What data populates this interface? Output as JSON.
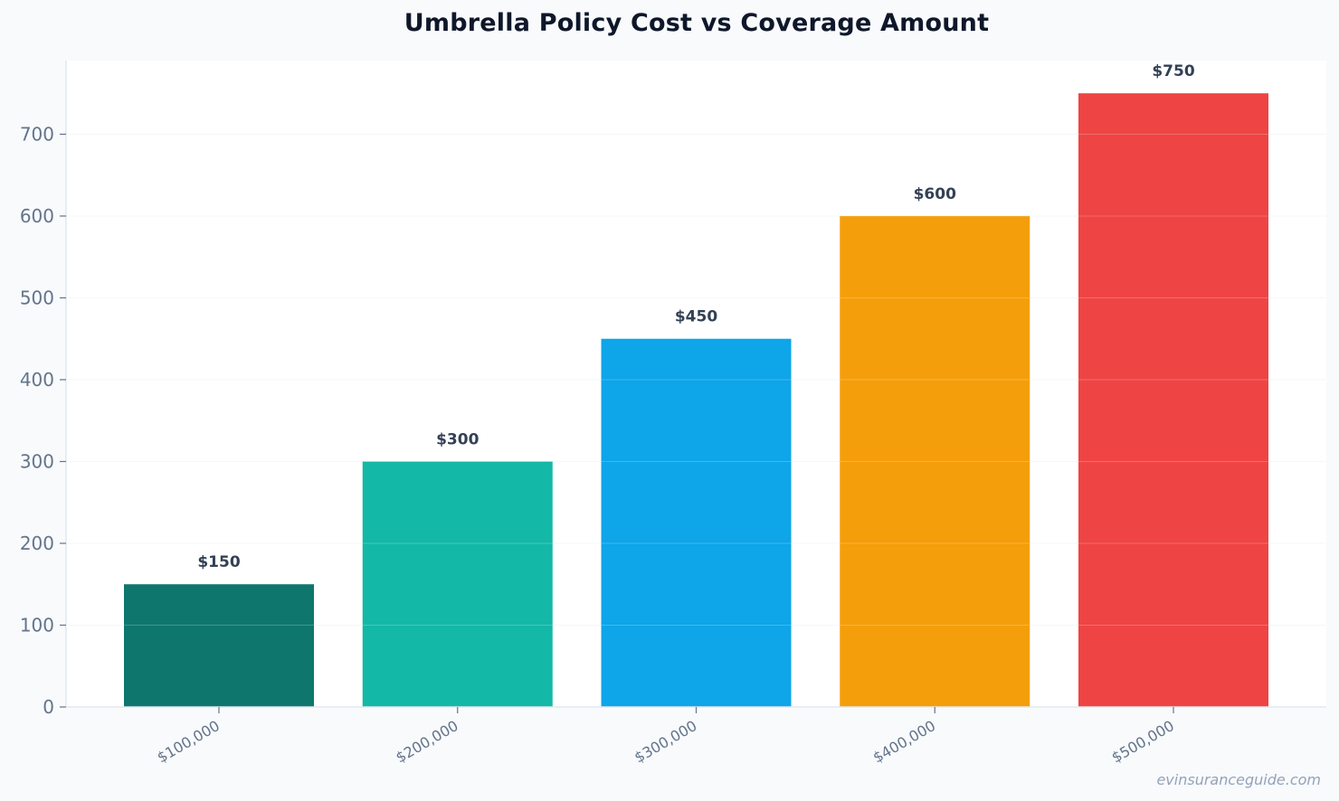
{
  "page": {
    "title": "Umbrella Policy Cost vs Coverage Amount",
    "watermark": "evinsuranceguide.com"
  },
  "colors": {
    "background": "#f8fafc",
    "plot_background": "#ffffff",
    "axis": "#e2e8f0",
    "tick_label": "#64748b",
    "value_label": "#334155"
  },
  "chart_data": {
    "type": "bar",
    "title": "Umbrella Policy Cost vs Coverage Amount",
    "xlabel": "",
    "ylabel": "",
    "categories": [
      "$100,000",
      "$200,000",
      "$300,000",
      "$400,000",
      "$500,000"
    ],
    "values": [
      150,
      300,
      450,
      600,
      750
    ],
    "value_labels": [
      "$150",
      "$300",
      "$450",
      "$600",
      "$750"
    ],
    "bar_colors": [
      "#0f766e",
      "#14b8a6",
      "#0ea5e9",
      "#f59e0b",
      "#ef4444"
    ],
    "ylim": [
      0,
      790
    ],
    "yticks": [
      0,
      100,
      200,
      300,
      400,
      500,
      600,
      700
    ],
    "grid": true,
    "legend": "none"
  }
}
